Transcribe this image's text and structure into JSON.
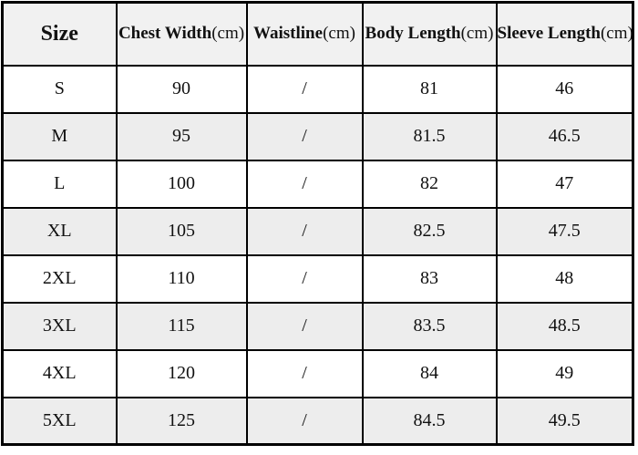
{
  "colors": {
    "border": "#000000",
    "header_background": "#f1f1f1",
    "row_alt_background": "#ededed",
    "row_background": "#ffffff",
    "text": "#111111"
  },
  "chart_data": {
    "type": "table",
    "columns": [
      {
        "label": "Size",
        "unit": ""
      },
      {
        "label": "Chest Width",
        "unit": "(cm)"
      },
      {
        "label": "Waistline",
        "unit": "(cm)"
      },
      {
        "label": "Body Length",
        "unit": "(cm)"
      },
      {
        "label": "Sleeve Length",
        "unit": "(cm)"
      }
    ],
    "rows": [
      [
        "S",
        "90",
        "/",
        "81",
        "46"
      ],
      [
        "M",
        "95",
        "/",
        "81.5",
        "46.5"
      ],
      [
        "L",
        "100",
        "/",
        "82",
        "47"
      ],
      [
        "XL",
        "105",
        "/",
        "82.5",
        "47.5"
      ],
      [
        "2XL",
        "110",
        "/",
        "83",
        "48"
      ],
      [
        "3XL",
        "115",
        "/",
        "83.5",
        "48.5"
      ],
      [
        "4XL",
        "120",
        "/",
        "84",
        "49"
      ],
      [
        "5XL",
        "125",
        "/",
        "84.5",
        "49.5"
      ]
    ]
  }
}
